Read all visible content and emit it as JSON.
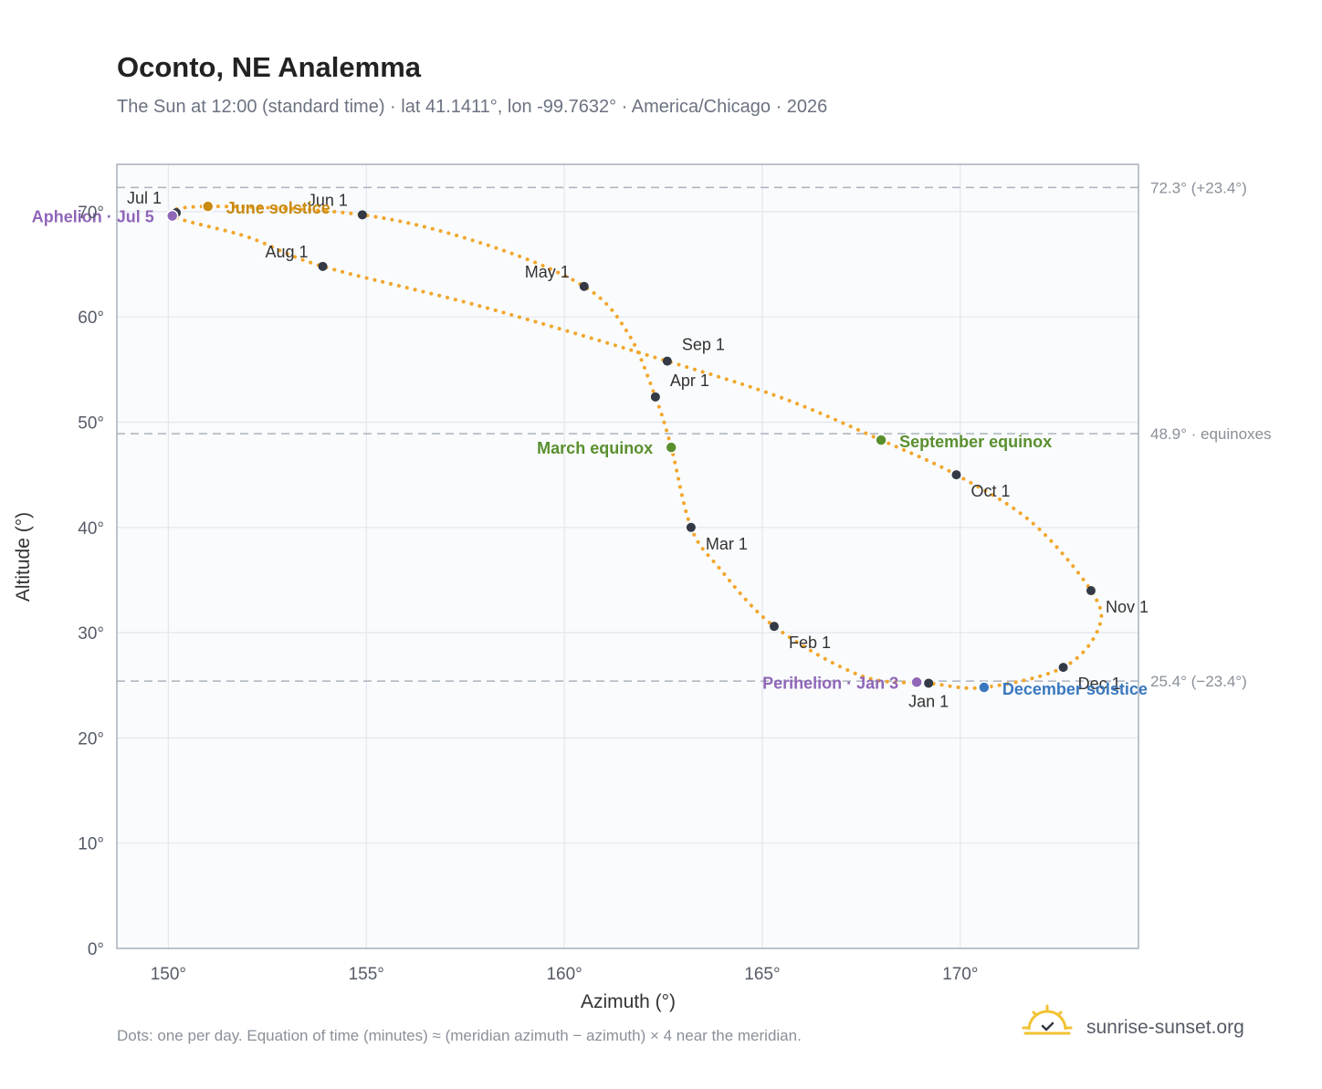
{
  "header": {
    "title": "Oconto, NE Analemma",
    "subtitle": "The Sun at 12:00 (standard time) · lat 41.1411°, lon -99.7632° · America/Chicago · 2026"
  },
  "footer": {
    "note": "Dots: one per day. Equation of time (minutes) ≈ (meridian azimuth − azimuth) × 4 near the meridian.",
    "brand": "sunrise-sunset.org",
    "brand_icon": "sun-check-icon"
  },
  "colors": {
    "curve": "#f2a62b",
    "month_dot": "#333a45",
    "june": "#c98a12",
    "equinox": "#5a8f2e",
    "december": "#3a78be",
    "apsis": "#8f66b8",
    "refline": "#aab2bd",
    "grid": "#e3e7ed",
    "plot_bg": "#f9fbfd",
    "frame": "#a8b0bc"
  },
  "chart_data": {
    "type": "scatter",
    "title": "Oconto, NE Analemma",
    "xlabel": "Azimuth (°)",
    "ylabel": "Altitude (°)",
    "xlim": [
      148.7,
      174.5
    ],
    "ylim": [
      0,
      74.5
    ],
    "xticks": [
      150,
      155,
      160,
      165,
      170
    ],
    "yticks": [
      0,
      10,
      20,
      30,
      40,
      50,
      60,
      70
    ],
    "xtick_labels": [
      "150°",
      "155°",
      "160°",
      "165°",
      "170°"
    ],
    "ytick_labels": [
      "0°",
      "10°",
      "20°",
      "30°",
      "40°",
      "50°",
      "60°",
      "70°"
    ],
    "grid": true,
    "series_note": "one dot per day",
    "curve_path": [
      [
        169.2,
        25.2
      ],
      [
        167.5,
        25.9
      ],
      [
        165.3,
        30.6
      ],
      [
        163.9,
        36.2
      ],
      [
        163.2,
        40.0
      ],
      [
        162.7,
        47.6
      ],
      [
        162.3,
        52.4
      ],
      [
        161.6,
        58.5
      ],
      [
        160.5,
        62.9
      ],
      [
        158.0,
        66.9
      ],
      [
        154.9,
        69.7
      ],
      [
        151.0,
        70.5
      ],
      [
        150.1,
        69.6
      ],
      [
        152.0,
        67.6
      ],
      [
        153.9,
        64.8
      ],
      [
        158.0,
        60.9
      ],
      [
        162.6,
        55.8
      ],
      [
        165.5,
        52.3
      ],
      [
        168.0,
        48.3
      ],
      [
        169.9,
        45.0
      ],
      [
        171.8,
        40.5
      ],
      [
        173.3,
        34.0
      ],
      [
        173.5,
        30.5
      ],
      [
        172.6,
        26.7
      ],
      [
        170.6,
        24.8
      ],
      [
        169.2,
        25.2
      ]
    ],
    "months": [
      {
        "label": "Jan 1",
        "az": 169.2,
        "alt": 25.2,
        "pos": "below"
      },
      {
        "label": "Feb 1",
        "az": 165.3,
        "alt": 30.6,
        "pos": "right-below"
      },
      {
        "label": "Mar 1",
        "az": 163.2,
        "alt": 40.0,
        "pos": "right-below"
      },
      {
        "label": "Apr 1",
        "az": 162.3,
        "alt": 52.4,
        "pos": "right-above"
      },
      {
        "label": "May 1",
        "az": 160.5,
        "alt": 62.9,
        "pos": "left-above"
      },
      {
        "label": "Jun 1",
        "az": 154.9,
        "alt": 69.7,
        "pos": "left-above"
      },
      {
        "label": "Jul 1",
        "az": 150.2,
        "alt": 69.9,
        "pos": "left-above"
      },
      {
        "label": "Aug 1",
        "az": 153.9,
        "alt": 64.8,
        "pos": "left-above"
      },
      {
        "label": "Sep 1",
        "az": 162.6,
        "alt": 55.8,
        "pos": "right-above"
      },
      {
        "label": "Oct 1",
        "az": 169.9,
        "alt": 45.0,
        "pos": "right-below"
      },
      {
        "label": "Nov 1",
        "az": 173.3,
        "alt": 34.0,
        "pos": "right-below"
      },
      {
        "label": "Dec 1",
        "az": 172.6,
        "alt": 26.7,
        "pos": "right-below"
      }
    ],
    "events": [
      {
        "label": "June solstice",
        "az": 151.0,
        "alt": 70.5,
        "color": "#c98a12",
        "pos": "right"
      },
      {
        "label": "March equinox",
        "az": 162.7,
        "alt": 47.6,
        "color": "#5a8f2e",
        "pos": "left"
      },
      {
        "label": "September equinox",
        "az": 168.0,
        "alt": 48.3,
        "color": "#5a8f2e",
        "pos": "right"
      },
      {
        "label": "December solstice",
        "az": 170.6,
        "alt": 24.8,
        "color": "#3a78be",
        "pos": "right"
      },
      {
        "label": "Aphelion · Jul 5",
        "az": 150.1,
        "alt": 69.6,
        "color": "#8f66b8",
        "pos": "left"
      },
      {
        "label": "Perihelion · Jan 3",
        "az": 168.9,
        "alt": 25.3,
        "color": "#8f66b8",
        "pos": "left"
      }
    ],
    "reference_lines": [
      {
        "alt": 72.3,
        "label": "72.3° (+23.4°)"
      },
      {
        "alt": 48.9,
        "label": "48.9° · equinoxes"
      },
      {
        "alt": 25.4,
        "label": "25.4° (−23.4°)"
      }
    ]
  }
}
